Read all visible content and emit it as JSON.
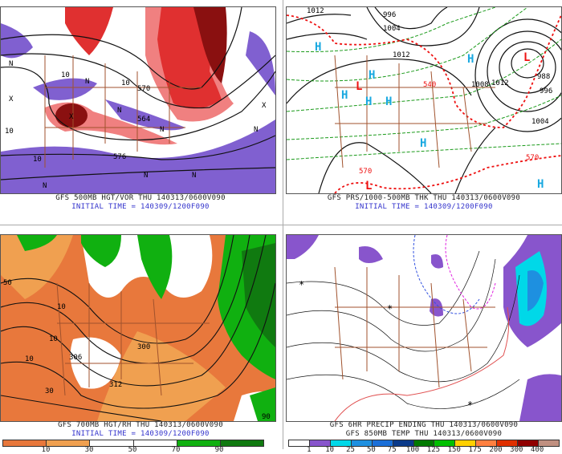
{
  "panels": [
    {
      "id": "500mb",
      "caption": "GFS 500MB HGT/VOR THU 140313/0600V090",
      "initial_time": "INITIAL TIME = 140309/1200F090",
      "labels": [
        "10",
        "10",
        "10",
        "10",
        "576",
        "564",
        "570",
        "N",
        "N",
        "N",
        "N",
        "N",
        "N",
        "N",
        "N",
        "X",
        "X",
        "X"
      ],
      "fill_colors": {
        "vorticity_high": "#e03030",
        "vorticity_mid": "#f08080",
        "vorticity_max": "#8a1010",
        "negative": "#8060d0"
      }
    },
    {
      "id": "pressure",
      "caption": "GFS PRS/1000-500MB THK THU 140313/0600V090",
      "initial_time": "INITIAL TIME = 140309/1200F090",
      "contour_labels": [
        "1012",
        "996",
        "1004",
        "1012",
        "540",
        "1008",
        "1012",
        "988",
        "996",
        "1004",
        "570",
        "570"
      ],
      "highs": [
        "H",
        "H",
        "H",
        "H",
        "H",
        "H",
        "H",
        "H"
      ],
      "lows": [
        "L",
        "L",
        "L"
      ],
      "colors": {
        "high": "#18a8e0",
        "low": "#ee1111",
        "isobar": "#111111",
        "thickness": "#1a9a1a",
        "thickness_540": "#ee1111",
        "borders": "#a0522d"
      }
    },
    {
      "id": "700mb",
      "caption": "GFS 700MB HGT/RH THU 140313/0600V090",
      "initial_time": "INITIAL TIME = 140309/1200F090",
      "labels": [
        "50",
        "10",
        "10",
        "30",
        "10",
        "312",
        "306",
        "300",
        "90"
      ],
      "colorbar": {
        "colors": [
          "#e8783c",
          "#f0a050",
          "#ffffff",
          "#ffffff",
          "#10b010",
          "#107a10"
        ],
        "ticks": [
          "10",
          "30",
          "50",
          "70",
          "90"
        ]
      }
    },
    {
      "id": "precip",
      "caption": "GFS 6HR PRECIP ENDING THU 140313/0600V090",
      "caption2": "GFS 850MB TEMP THU 140313/0600V090",
      "labels": [
        "*",
        "*",
        "*"
      ],
      "colorbar": {
        "colors": [
          "#ffffff",
          "#8855cc",
          "#00d8e8",
          "#1e90e0",
          "#1a6fd8",
          "#0a3a8a",
          "#007a00",
          "#00c000",
          "#ffd000",
          "#ff8040",
          "#e03000",
          "#900000",
          "#c09080"
        ],
        "ticks": [
          "1",
          "10",
          "25",
          "50",
          "75",
          "100",
          "125",
          "150",
          "175",
          "200",
          "300",
          "400"
        ]
      }
    }
  ]
}
